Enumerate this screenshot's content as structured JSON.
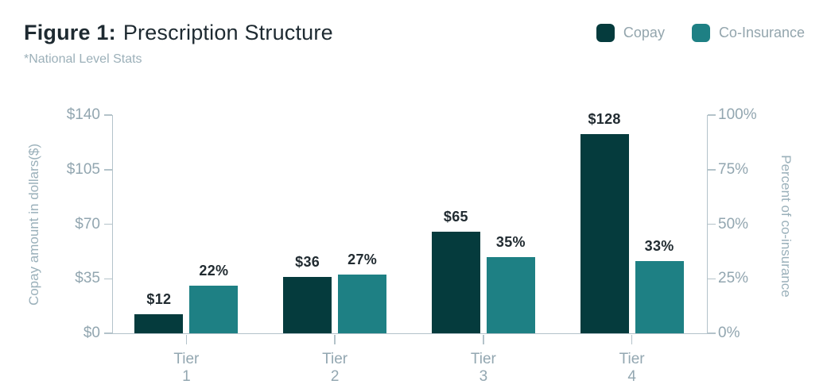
{
  "figure": {
    "title_prefix": "Figure 1:",
    "title": "Prescription Structure",
    "subtitle": "*National Level Stats"
  },
  "chart_data": {
    "type": "bar",
    "title": "Figure 1: Prescription Structure",
    "subtitle": "*National Level Stats",
    "categories": [
      "Tier 1",
      "Tier 2",
      "Tier 3",
      "Tier 4"
    ],
    "series": [
      {
        "name": "Copay",
        "axis": "left",
        "color": "#053b3d",
        "values": [
          12,
          36,
          65,
          128
        ],
        "data_labels": [
          "$12",
          "$36",
          "$65",
          "$128"
        ]
      },
      {
        "name": "Co-Insurance",
        "axis": "right",
        "color": "#1e8084",
        "values": [
          22,
          27,
          35,
          33
        ],
        "data_labels": [
          "22%",
          "27%",
          "35%",
          "33%"
        ]
      }
    ],
    "left_axis": {
      "label": "Copay amount in dollars($)",
      "min": 0,
      "max": 140,
      "ticks": [
        "$0",
        "$35",
        "$70",
        "$105",
        "$140"
      ]
    },
    "right_axis": {
      "label": "Percent of co-insurance",
      "min": 0,
      "max": 100,
      "ticks": [
        "0%",
        "25%",
        "50%",
        "75%",
        "100%"
      ]
    },
    "grid": false,
    "legend_position": "top-right"
  },
  "colors": {
    "copay": "#053b3d",
    "coinsurance": "#1e8084",
    "title_text": "#1e2a31",
    "muted_text": "#93a7b1",
    "axis_line": "#b4c3ca",
    "data_label_text": "#212b31"
  }
}
